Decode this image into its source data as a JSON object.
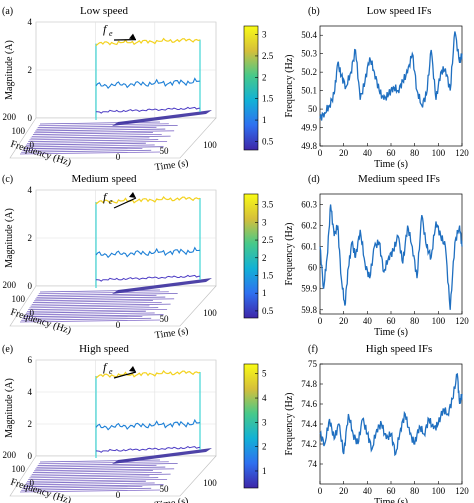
{
  "figure": {
    "panel_labels": [
      "(a)",
      "(b)",
      "(c)",
      "(d)",
      "(e)",
      "(f)"
    ],
    "annotation": "f",
    "annotation_sub": "e"
  },
  "chart_data": [
    {
      "id": "a",
      "type": "surface3d",
      "title": "Low speed",
      "xlabel": "Time (s)",
      "ylabel": "Frequency (Hz)",
      "zlabel": "Magnitude (A)",
      "x_ticks": [
        0,
        50,
        100
      ],
      "y_ticks": [
        0,
        100,
        200
      ],
      "z_ticks": [
        0,
        2,
        4
      ],
      "zlim": [
        0,
        4
      ],
      "colorbar": {
        "ticks": [
          0.5,
          1,
          1.5,
          2,
          2.5,
          3
        ],
        "range": [
          0.3,
          3.2
        ]
      },
      "ridge_level": 3.1,
      "secondary_level": 1.35,
      "baseline_level": 0.25
    },
    {
      "id": "b",
      "type": "line",
      "title": "Low speed IFs",
      "xlabel": "Time (s)",
      "ylabel": "Frequency (Hz)",
      "xlim": [
        0,
        120
      ],
      "ylim": [
        49.8,
        50.45
      ],
      "x_ticks": [
        0,
        20,
        40,
        60,
        80,
        100,
        120
      ],
      "y_ticks": [
        49.8,
        49.9,
        50,
        50.1,
        50.2,
        50.3,
        50.4
      ],
      "series": [
        {
          "x": [
            0,
            4,
            8,
            12,
            15,
            18,
            22,
            26,
            30,
            34,
            38,
            42,
            46,
            50,
            54,
            58,
            62,
            66,
            70,
            74,
            78,
            82,
            86,
            90,
            94,
            98,
            102,
            106,
            110,
            114,
            118,
            120
          ],
          "values": [
            49.95,
            49.98,
            50.02,
            50.08,
            50.25,
            50.18,
            50.12,
            50.2,
            50.32,
            50.05,
            50.15,
            50.28,
            50.2,
            50.1,
            50.05,
            50.08,
            50.12,
            50.1,
            50.15,
            50.2,
            50.3,
            50.1,
            50.02,
            50.08,
            50.32,
            50.05,
            50.2,
            50.22,
            50.1,
            50.42,
            50.25,
            50.3
          ]
        }
      ]
    },
    {
      "id": "c",
      "type": "surface3d",
      "title": "Medium speed",
      "xlabel": "Time (s)",
      "ylabel": "Frequency (Hz)",
      "zlabel": "Magnitude (A)",
      "x_ticks": [
        0,
        50,
        100
      ],
      "y_ticks": [
        0,
        100,
        200
      ],
      "z_ticks": [
        0,
        2,
        4
      ],
      "zlim": [
        0,
        4
      ],
      "colorbar": {
        "ticks": [
          0.5,
          1,
          1.5,
          2,
          2.5,
          3,
          3.5
        ],
        "range": [
          0.3,
          3.8
        ]
      },
      "ridge_level": 3.5,
      "secondary_level": 1.3,
      "baseline_level": 0.25
    },
    {
      "id": "d",
      "type": "line",
      "title": "Medium speed IFs",
      "xlabel": "Time (s)",
      "ylabel": "Frequency (Hz)",
      "xlim": [
        0,
        120
      ],
      "ylim": [
        59.78,
        60.35
      ],
      "x_ticks": [
        0,
        20,
        40,
        60,
        80,
        100,
        120
      ],
      "y_ticks": [
        59.8,
        59.9,
        60,
        60.1,
        60.2,
        60.3
      ],
      "series": [
        {
          "x": [
            0,
            3,
            6,
            9,
            12,
            15,
            18,
            21,
            24,
            27,
            30,
            34,
            38,
            42,
            46,
            50,
            54,
            58,
            62,
            66,
            70,
            74,
            78,
            82,
            86,
            90,
            94,
            98,
            102,
            106,
            110,
            114,
            118,
            120
          ],
          "values": [
            60.1,
            59.9,
            60.05,
            60.3,
            60.15,
            60.2,
            59.95,
            59.82,
            60.0,
            60.12,
            60.05,
            60.18,
            60.02,
            59.95,
            60.1,
            60.12,
            59.98,
            60.05,
            60.08,
            60.15,
            60.02,
            60.2,
            60.1,
            59.95,
            60.25,
            60.1,
            60.05,
            60.22,
            60.15,
            60.1,
            59.8,
            60.12,
            60.2,
            60.1
          ]
        }
      ]
    },
    {
      "id": "e",
      "type": "surface3d",
      "title": "High speed",
      "xlabel": "Time (s)",
      "ylabel": "Frequency (Hz)",
      "zlabel": "Magnitude (A)",
      "x_ticks": [
        0,
        50,
        100
      ],
      "y_ticks": [
        0,
        100,
        200
      ],
      "z_ticks": [
        0,
        2,
        4,
        6
      ],
      "zlim": [
        0,
        6
      ],
      "colorbar": {
        "ticks": [
          1,
          2,
          3,
          4,
          5
        ],
        "range": [
          0.3,
          5.4
        ]
      },
      "ridge_level": 5.0,
      "secondary_level": 1.8,
      "baseline_level": 0.3
    },
    {
      "id": "f",
      "type": "line",
      "title": "High speed IFs",
      "xlabel": "Time (s)",
      "ylabel": "Frequency (Hz)",
      "xlim": [
        0,
        120
      ],
      "ylim": [
        73.8,
        75.0
      ],
      "x_ticks": [
        0,
        20,
        40,
        60,
        80,
        100,
        120
      ],
      "y_ticks": [
        74,
        74.2,
        74.4,
        74.6,
        74.8,
        75
      ],
      "series": [
        {
          "x": [
            0,
            4,
            8,
            12,
            16,
            20,
            24,
            28,
            32,
            36,
            40,
            44,
            48,
            52,
            56,
            60,
            64,
            68,
            72,
            76,
            80,
            84,
            88,
            92,
            96,
            100,
            104,
            108,
            112,
            116,
            118,
            120
          ],
          "values": [
            74.3,
            74.2,
            74.45,
            74.25,
            74.4,
            74.1,
            74.5,
            74.3,
            74.2,
            74.45,
            74.3,
            74.15,
            74.35,
            74.4,
            74.25,
            74.3,
            74.1,
            74.35,
            74.5,
            74.3,
            74.2,
            74.38,
            74.3,
            74.45,
            74.35,
            74.4,
            74.55,
            74.5,
            74.65,
            74.9,
            74.6,
            74.7
          ]
        }
      ]
    }
  ]
}
